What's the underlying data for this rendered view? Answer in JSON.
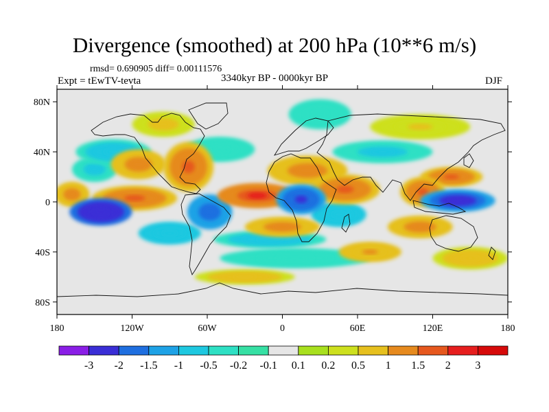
{
  "chart_data": {
    "type": "heatmap",
    "title": "Divergence (smoothed) at 200 hPa (10**6 m/s)",
    "stats_text": "rmsd= 0.690905 diff= 0.00111576",
    "experiment": "Expt = tEwTV-tevta",
    "period": "3340kyr BP - 0000kyr BP",
    "season": "DJF",
    "projection": "cylindrical equidistant",
    "x_range": [
      -180,
      180
    ],
    "y_range": [
      -90,
      90
    ],
    "x_ticks": [
      {
        "value": -180,
        "label": "180"
      },
      {
        "value": -120,
        "label": "120W"
      },
      {
        "value": -60,
        "label": "60W"
      },
      {
        "value": 0,
        "label": "0"
      },
      {
        "value": 60,
        "label": "60E"
      },
      {
        "value": 120,
        "label": "120E"
      },
      {
        "value": 180,
        "label": "180"
      }
    ],
    "y_ticks": [
      {
        "value": 80,
        "label": "80N"
      },
      {
        "value": 40,
        "label": "40N"
      },
      {
        "value": 0,
        "label": "0"
      },
      {
        "value": -40,
        "label": "40S"
      },
      {
        "value": -80,
        "label": "80S"
      }
    ],
    "colorbar": {
      "levels": [
        "-3",
        "-2",
        "-1.5",
        "-1",
        "-0.5",
        "-0.2",
        "-0.1",
        "0.1",
        "0.2",
        "0.5",
        "1",
        "1.5",
        "2",
        "3"
      ],
      "colors": [
        "#8a1ee6",
        "#3a2ed6",
        "#1f6fe0",
        "#1ea2e6",
        "#1ec8e0",
        "#2ee0c4",
        "#36e0a4",
        "#e6e6e6",
        "#a8e01e",
        "#cde01e",
        "#e6c01e",
        "#e68a1e",
        "#e6581e",
        "#e61e1e",
        "#d60a0a"
      ]
    },
    "field": {
      "description": "Approximate smoothed divergence anomaly features (10**6 m/s), centers in lon/lat degrees",
      "features": [
        {
          "lon": -145,
          "lat": -8,
          "value": -3.0,
          "rx": 25,
          "ry": 11
        },
        {
          "lon": -118,
          "lat": 3,
          "value": 1.5,
          "rx": 34,
          "ry": 10
        },
        {
          "lon": -168,
          "lat": 6,
          "value": 1.2,
          "rx": 14,
          "ry": 10
        },
        {
          "lon": -135,
          "lat": 40,
          "value": -0.8,
          "rx": 30,
          "ry": 10
        },
        {
          "lon": -150,
          "lat": 26,
          "value": -0.6,
          "rx": 18,
          "ry": 10
        },
        {
          "lon": -115,
          "lat": 30,
          "value": 1.2,
          "rx": 22,
          "ry": 12
        },
        {
          "lon": -75,
          "lat": 28,
          "value": 1.5,
          "rx": 20,
          "ry": 20
        },
        {
          "lon": -50,
          "lat": 42,
          "value": -0.5,
          "rx": 28,
          "ry": 10
        },
        {
          "lon": -58,
          "lat": -8,
          "value": -2.0,
          "rx": 18,
          "ry": 14
        },
        {
          "lon": -20,
          "lat": 5,
          "value": 2.0,
          "rx": 32,
          "ry": 10
        },
        {
          "lon": 15,
          "lat": 2,
          "value": -2.3,
          "rx": 20,
          "ry": 12
        },
        {
          "lon": 20,
          "lat": 25,
          "value": 1.3,
          "rx": 32,
          "ry": 12
        },
        {
          "lon": 50,
          "lat": 10,
          "value": 1.5,
          "rx": 28,
          "ry": 12
        },
        {
          "lon": 80,
          "lat": 40,
          "value": -0.7,
          "rx": 40,
          "ry": 9
        },
        {
          "lon": 45,
          "lat": -10,
          "value": -1.0,
          "rx": 22,
          "ry": 10
        },
        {
          "lon": 140,
          "lat": 1,
          "value": -2.5,
          "rx": 30,
          "ry": 9
        },
        {
          "lon": 135,
          "lat": 20,
          "value": 1.5,
          "rx": 25,
          "ry": 8
        },
        {
          "lon": 112,
          "lat": 8,
          "value": 1.6,
          "rx": 18,
          "ry": 12
        },
        {
          "lon": 110,
          "lat": -20,
          "value": 1.2,
          "rx": 26,
          "ry": 9
        },
        {
          "lon": -90,
          "lat": -25,
          "value": -1.0,
          "rx": 25,
          "ry": 9
        },
        {
          "lon": -10,
          "lat": -30,
          "value": -0.8,
          "rx": 45,
          "ry": 7
        },
        {
          "lon": 10,
          "lat": -45,
          "value": -0.4,
          "rx": 60,
          "ry": 8
        },
        {
          "lon": 0,
          "lat": -20,
          "value": 1.2,
          "rx": 30,
          "ry": 8
        },
        {
          "lon": 70,
          "lat": -40,
          "value": 1.0,
          "rx": 25,
          "ry": 8
        },
        {
          "lon": -30,
          "lat": -60,
          "value": 0.8,
          "rx": 40,
          "ry": 6
        },
        {
          "lon": 150,
          "lat": -45,
          "value": 0.8,
          "rx": 30,
          "ry": 9
        },
        {
          "lon": 30,
          "lat": 70,
          "value": -0.5,
          "rx": 25,
          "ry": 12
        },
        {
          "lon": -95,
          "lat": 62,
          "value": 0.7,
          "rx": 25,
          "ry": 10
        },
        {
          "lon": 110,
          "lat": 60,
          "value": 0.5,
          "rx": 40,
          "ry": 10
        }
      ]
    }
  }
}
